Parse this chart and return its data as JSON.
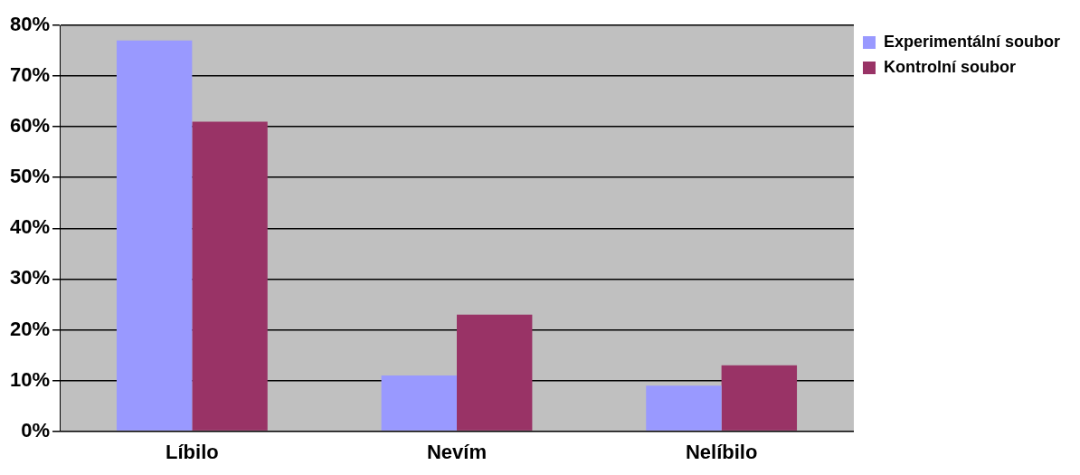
{
  "chart_data": {
    "type": "bar",
    "categories": [
      "Líbilo",
      "Nevím",
      "Nelíbilo"
    ],
    "series": [
      {
        "name": "Experimentální soubor",
        "color": "#9999ff",
        "values": [
          77,
          11,
          9
        ]
      },
      {
        "name": "Kontrolní soubor",
        "color": "#993366",
        "values": [
          61,
          23,
          13
        ]
      }
    ],
    "ylim": [
      0,
      80
    ],
    "yticks": [
      {
        "value": 0,
        "label": "0%"
      },
      {
        "value": 10,
        "label": "10%"
      },
      {
        "value": 20,
        "label": "20%"
      },
      {
        "value": 30,
        "label": "30%"
      },
      {
        "value": 40,
        "label": "40%"
      },
      {
        "value": 50,
        "label": "50%"
      },
      {
        "value": 60,
        "label": "60%"
      },
      {
        "value": 70,
        "label": "70%"
      },
      {
        "value": 80,
        "label": "80%"
      }
    ],
    "grid": "y",
    "legend": "top right"
  }
}
